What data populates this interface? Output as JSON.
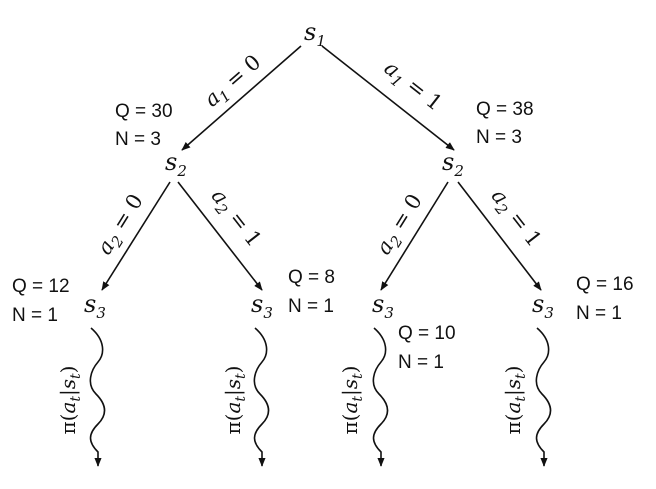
{
  "nodes": {
    "root": {
      "base": "s",
      "sub": "1"
    },
    "left": {
      "base": "s",
      "sub": "2",
      "stats": {
        "q": "Q = 30",
        "n": "N = 3"
      }
    },
    "right": {
      "base": "s",
      "sub": "2",
      "stats": {
        "q": "Q = 38",
        "n": "N = 3"
      }
    },
    "leaf1": {
      "base": "s",
      "sub": "3",
      "stats": {
        "q": "Q = 12",
        "n": "N = 1"
      }
    },
    "leaf2": {
      "base": "s",
      "sub": "3",
      "stats": {
        "q": "Q = 8",
        "n": "N = 1"
      }
    },
    "leaf3": {
      "base": "s",
      "sub": "3",
      "stats": {
        "q": "Q = 10",
        "n": "N = 1"
      }
    },
    "leaf4": {
      "base": "s",
      "sub": "3",
      "stats": {
        "q": "Q = 16",
        "n": "N = 1"
      }
    }
  },
  "edges": {
    "a1_0": {
      "base": "a",
      "sub": "1",
      "rhs": " = 0"
    },
    "a1_1": {
      "base": "a",
      "sub": "1",
      "rhs": " = 1"
    },
    "a2_0_left": {
      "base": "a",
      "sub": "2",
      "rhs": " = 0"
    },
    "a2_1_left": {
      "base": "a",
      "sub": "2",
      "rhs": " = 1"
    },
    "a2_0_right": {
      "base": "a",
      "sub": "2",
      "rhs": " = 0"
    },
    "a2_1_right": {
      "base": "a",
      "sub": "2",
      "rhs": " = 1"
    }
  },
  "rollout": {
    "pi": "π",
    "open": "(",
    "a": "a",
    "a_sub": "t",
    "bar": "|",
    "s": "s",
    "s_sub": "t",
    "close": ")"
  }
}
